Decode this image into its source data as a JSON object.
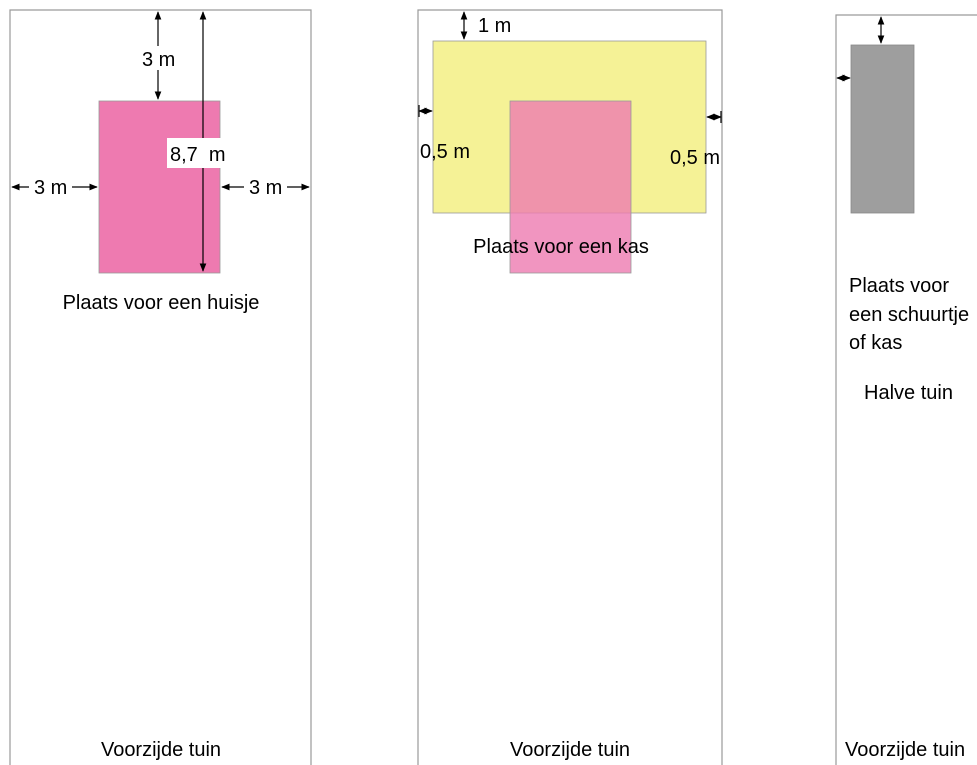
{
  "plot1": {
    "building_color": "#ee7ab0",
    "dim_top": "3 m",
    "dim_length": "8,7  m",
    "dim_left": "3 m",
    "dim_right": "3 m",
    "caption": "Plaats voor een huisje",
    "front": "Voorzijde tuin"
  },
  "plot2": {
    "zone_color": "#f5f296",
    "building_color": "#ee7ab0",
    "dim_top": "1 m",
    "dim_left": "0,5 m",
    "dim_right": "0,5 m",
    "caption": "Plaats voor een kas",
    "front": "Voorzijde tuin"
  },
  "plot3": {
    "building_color": "#9e9e9e",
    "caption_line1": "Plaats voor",
    "caption_line2": "een schuurtje",
    "caption_line3": "of kas",
    "half": "Halve tuin",
    "front": "Voorzijde tuin"
  }
}
